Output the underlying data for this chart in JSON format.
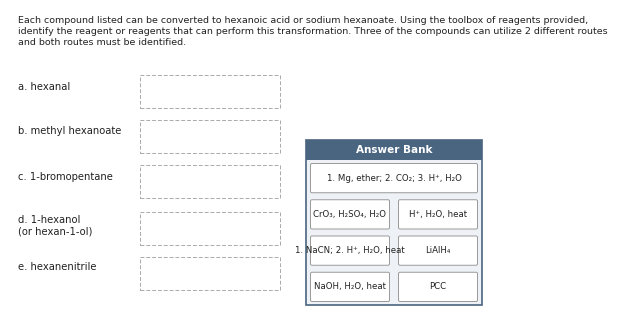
{
  "title_lines": [
    "Each compound listed can be converted to hexanoic acid or sodium hexanoate. Using the toolbox of reagents provided,",
    "identify the reagent or reagents that can perform this transformation. Three of the compounds can utilize 2 different routes",
    "and both routes must be identified."
  ],
  "compounds": [
    {
      "label": "a. hexanal"
    },
    {
      "label": "b. methyl hexanoate"
    },
    {
      "label": "c. 1-bromopentane"
    },
    {
      "label": "d. 1-hexanol\n(or hexan-1-ol)"
    },
    {
      "label": "e. hexanenitrile"
    }
  ],
  "answer_bank": {
    "header": "Answer Bank",
    "header_color": "#4a6580",
    "bg_color": "#eef2f6",
    "border_color": "#4a6580",
    "reagents": [
      {
        "text": "1. Mg, ether; 2. CO₂; 3. H⁺, H₂O",
        "row": 0,
        "col": 0,
        "colspan": 2
      },
      {
        "text": "CrO₃, H₂SO₄, H₂O",
        "row": 1,
        "col": 0,
        "colspan": 1
      },
      {
        "text": "H⁺, H₂O, heat",
        "row": 1,
        "col": 1,
        "colspan": 1
      },
      {
        "text": "1. NaCN; 2. H⁺, H₂O, heat",
        "row": 2,
        "col": 0,
        "colspan": 1
      },
      {
        "text": "LiAlH₄",
        "row": 2,
        "col": 1,
        "colspan": 1
      },
      {
        "text": "NaOH, H₂O, heat",
        "row": 3,
        "col": 0,
        "colspan": 1
      },
      {
        "text": "PCC",
        "row": 3,
        "col": 1,
        "colspan": 1
      }
    ]
  },
  "bg_color": "#ffffff",
  "text_color": "#222222",
  "title_fontsize": 6.8,
  "compound_fontsize": 7.2,
  "reagent_fontsize": 6.2,
  "header_fontsize": 7.5
}
